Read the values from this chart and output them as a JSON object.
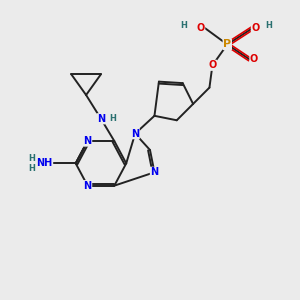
{
  "background_color": "#ebebeb",
  "fig_width": 3.0,
  "fig_height": 3.0,
  "dpi": 100,
  "atom_colors": {
    "N": "#0000ee",
    "O": "#dd0000",
    "P": "#cc8800",
    "C": "#222222",
    "H": "#2a7070"
  },
  "bond_color": "#222222",
  "bond_width": 1.4,
  "font_size_atoms": 7.0,
  "font_size_h": 6.0
}
